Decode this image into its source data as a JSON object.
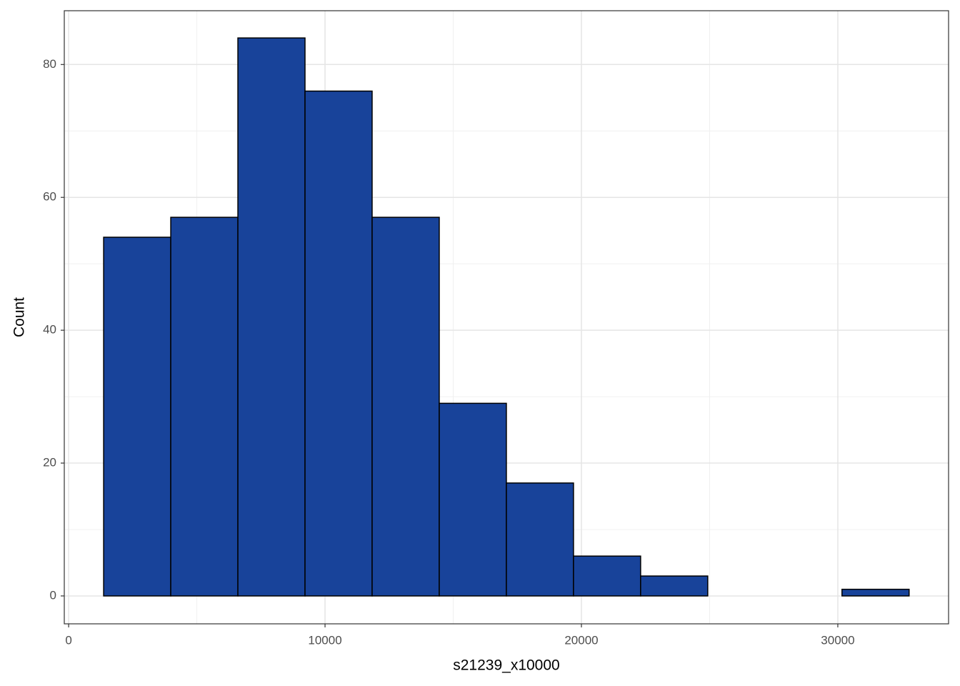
{
  "chart_data": {
    "type": "histogram",
    "x_label": "s21239_x10000",
    "y_label": "Count",
    "bins": [
      1365,
      3983,
      6601,
      9219,
      11837,
      14455,
      17073,
      19691,
      22309,
      24927,
      27545,
      30163,
      32781
    ],
    "counts": [
      54,
      57,
      84,
      76,
      57,
      29,
      17,
      6,
      3,
      0,
      0,
      1
    ],
    "color": "#18439a",
    "edge_color": "#000000",
    "xlim": [
      -170,
      34320
    ],
    "ylim": [
      -4.2,
      88.1
    ],
    "xticks": [
      0,
      10000,
      20000,
      30000
    ],
    "yticks": [
      0,
      20,
      40,
      60,
      80
    ],
    "x_minor_grid": [
      5000,
      15000,
      25000
    ],
    "y_minor_grid": [
      10,
      30,
      50,
      70
    ],
    "grid": true
  }
}
